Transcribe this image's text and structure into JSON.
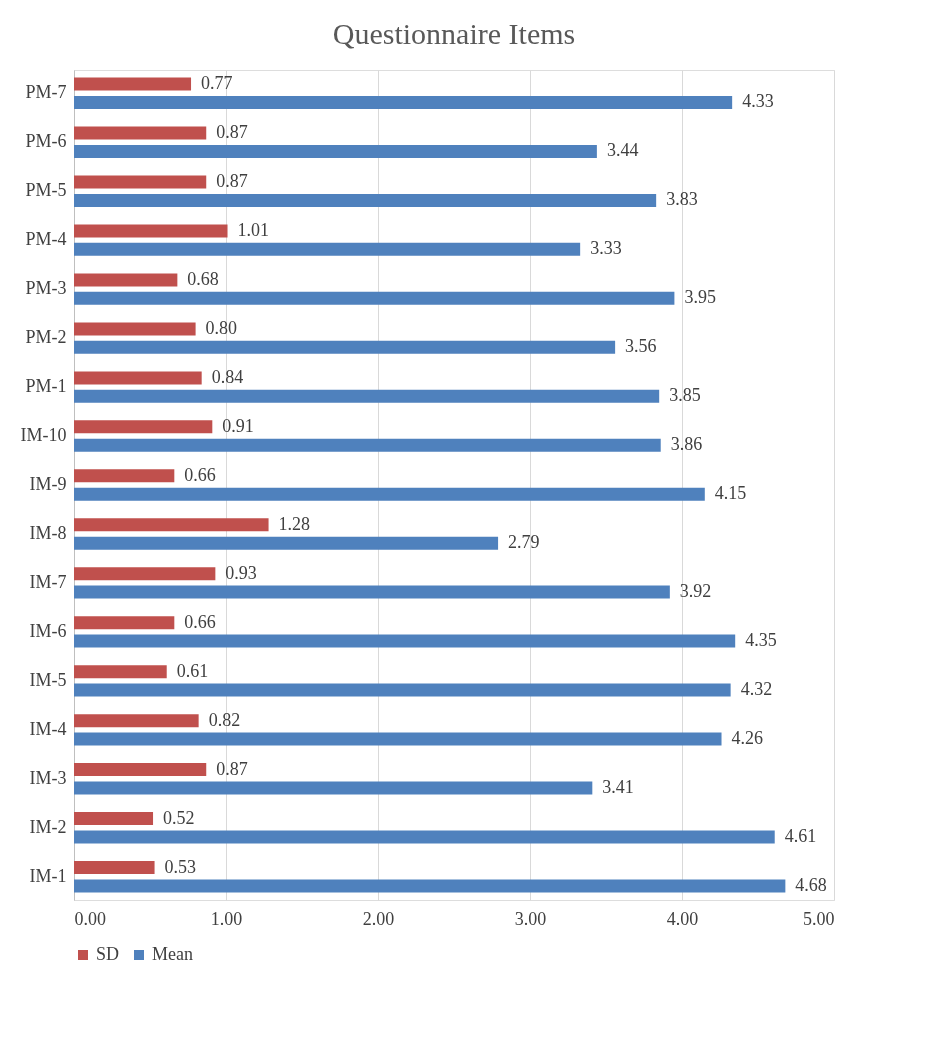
{
  "chart_data": {
    "type": "bar",
    "orientation": "horizontal",
    "title": "Questionnaire Items",
    "categories": [
      "PM-7",
      "PM-6",
      "PM-5",
      "PM-4",
      "PM-3",
      "PM-2",
      "PM-1",
      "IM-10",
      "IM-9",
      "IM-8",
      "IM-7",
      "IM-6",
      "IM-5",
      "IM-4",
      "IM-3",
      "IM-2",
      "IM-1"
    ],
    "series": [
      {
        "name": "SD",
        "color": "#c0504d",
        "values": [
          0.77,
          0.87,
          0.87,
          1.01,
          0.68,
          0.8,
          0.84,
          0.91,
          0.66,
          1.28,
          0.93,
          0.66,
          0.61,
          0.82,
          0.87,
          0.52,
          0.53
        ],
        "value_labels": [
          "0.77",
          "0.87",
          "0.87",
          "1.01",
          "0.68",
          "0.80",
          "0.84",
          "0.91",
          "0.66",
          "1.28",
          "0.93",
          "0.66",
          "0.61",
          "0.82",
          "0.87",
          "0.52",
          "0.53"
        ]
      },
      {
        "name": "Mean",
        "color": "#4f81bd",
        "values": [
          4.33,
          3.44,
          3.83,
          3.33,
          3.95,
          3.56,
          3.85,
          3.86,
          4.15,
          2.79,
          3.92,
          4.35,
          4.32,
          4.26,
          3.41,
          4.61,
          4.68
        ],
        "value_labels": [
          "4.33",
          "3.44",
          "3.83",
          "3.33",
          "3.95",
          "3.56",
          "3.85",
          "3.86",
          "4.15",
          "2.79",
          "3.92",
          "4.35",
          "4.32",
          "4.26",
          "3.41",
          "4.61",
          "4.68"
        ]
      }
    ],
    "xlim": [
      0,
      5
    ],
    "xticks": [
      {
        "value": 0,
        "label": "0.00"
      },
      {
        "value": 1,
        "label": "1.00"
      },
      {
        "value": 2,
        "label": "2.00"
      },
      {
        "value": 3,
        "label": "3.00"
      },
      {
        "value": 4,
        "label": "4.00"
      },
      {
        "value": 5,
        "label": "5.00"
      }
    ],
    "grid": "x",
    "legend": "bottom"
  }
}
